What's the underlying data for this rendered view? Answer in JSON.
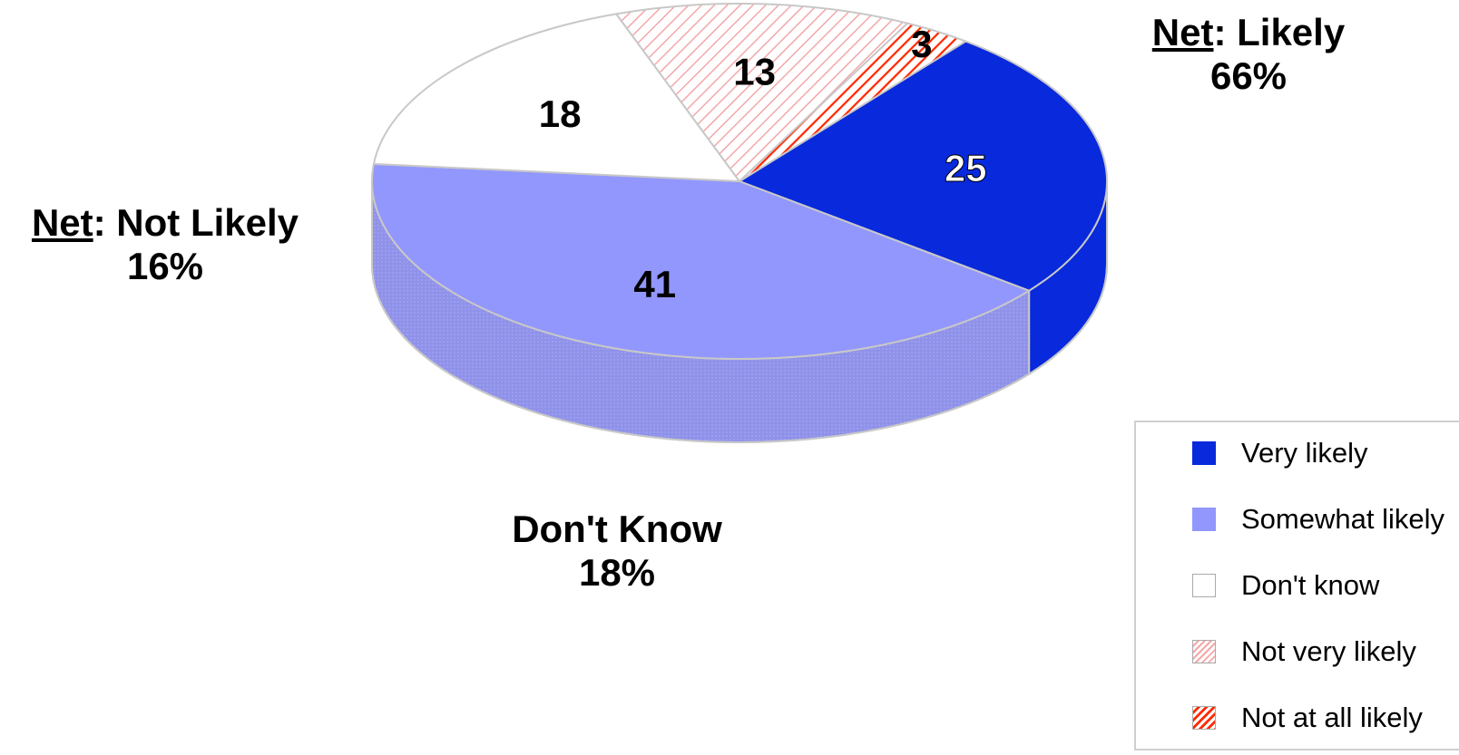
{
  "chart_data": {
    "type": "pie",
    "style": "3d-pie",
    "slices": [
      {
        "label": "Very likely",
        "value": 25,
        "color": "#0829dc",
        "pattern": "solid"
      },
      {
        "label": "Somewhat likely",
        "value": 41,
        "color": "#9297fd",
        "pattern": "solid"
      },
      {
        "label": "Don't know",
        "value": 18,
        "color": "#ffffff",
        "pattern": "solid"
      },
      {
        "label": "Not very likely",
        "value": 13,
        "color": "#f2a0a0",
        "pattern": "light-diagonal-hatch"
      },
      {
        "label": "Not at all likely",
        "value": 3,
        "color": "#ff2a00",
        "pattern": "dense-diagonal-hatch"
      }
    ],
    "legend": {
      "position": "bottom-right",
      "entries": [
        "Very likely",
        "Somewhat likely",
        "Don't know",
        "Not very likely",
        "Not at all likely"
      ]
    },
    "group_labels": {
      "net_likely": {
        "prefix": "Net",
        "text": ": Likely",
        "value": "66%"
      },
      "net_not_likely": {
        "prefix": "Net",
        "text": ": Not Likely",
        "value": "16%"
      },
      "dont_know": {
        "text": "Don't Know",
        "value": "18%"
      }
    }
  }
}
